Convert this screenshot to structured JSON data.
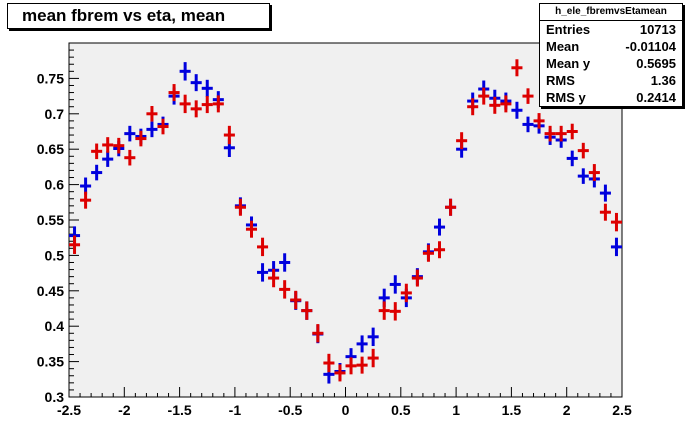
{
  "title": "mean fbrem vs eta, mean",
  "stats": {
    "name": "h_ele_fbremvsEtamean",
    "rows": [
      {
        "label": "Entries",
        "value": "10713"
      },
      {
        "label": "Mean",
        "value": "-0.01104"
      },
      {
        "label": "Mean y",
        "value": "0.5695"
      },
      {
        "label": "RMS",
        "value": "1.36"
      },
      {
        "label": "RMS y",
        "value": "0.2414"
      }
    ]
  },
  "chart_data": {
    "type": "scatter",
    "xlim": [
      -2.5,
      2.5
    ],
    "ylim": [
      0.3,
      0.8
    ],
    "x_ticks": [
      "-2.5",
      "-2",
      "-1.5",
      "-1",
      "-0.5",
      "0",
      "0.5",
      "1",
      "1.5",
      "2",
      "2.5"
    ],
    "y_ticks": [
      "0.3",
      "0.35",
      "0.4",
      "0.45",
      "0.5",
      "0.55",
      "0.6",
      "0.65",
      "0.7",
      "0.75"
    ],
    "grid": false,
    "plot_background": "#f0f0f0",
    "series": [
      {
        "color": "#0000dd",
        "x": [
          -2.45,
          -2.35,
          -2.25,
          -2.15,
          -2.05,
          -1.95,
          -1.85,
          -1.75,
          -1.65,
          -1.55,
          -1.45,
          -1.35,
          -1.25,
          -1.15,
          -1.05,
          -0.95,
          -0.85,
          -0.75,
          -0.65,
          -0.55,
          -0.45,
          -0.35,
          -0.25,
          -0.15,
          -0.05,
          0.05,
          0.15,
          0.25,
          0.35,
          0.45,
          0.55,
          0.65,
          0.75,
          0.85,
          0.95,
          1.05,
          1.15,
          1.25,
          1.35,
          1.45,
          1.55,
          1.65,
          1.75,
          1.85,
          1.95,
          2.05,
          2.15,
          2.25,
          2.35,
          2.45
        ],
        "y": [
          0.528,
          0.598,
          0.617,
          0.636,
          0.651,
          0.672,
          0.668,
          0.678,
          0.685,
          0.725,
          0.76,
          0.744,
          0.736,
          0.72,
          0.652,
          0.57,
          0.543,
          0.476,
          0.479,
          0.49,
          0.436,
          0.422,
          0.389,
          0.332,
          0.336,
          0.357,
          0.375,
          0.385,
          0.44,
          0.459,
          0.44,
          0.47,
          0.505,
          0.54,
          0.568,
          0.65,
          0.718,
          0.735,
          0.722,
          0.718,
          0.705,
          0.685,
          0.683,
          0.667,
          0.663,
          0.637,
          0.612,
          0.608,
          0.588,
          0.512
        ],
        "err": [
          0.013,
          0.012,
          0.011,
          0.011,
          0.011,
          0.011,
          0.011,
          0.011,
          0.011,
          0.012,
          0.013,
          0.012,
          0.012,
          0.012,
          0.013,
          0.012,
          0.012,
          0.013,
          0.013,
          0.013,
          0.013,
          0.013,
          0.013,
          0.013,
          0.012,
          0.012,
          0.012,
          0.013,
          0.013,
          0.013,
          0.013,
          0.012,
          0.012,
          0.012,
          0.012,
          0.012,
          0.012,
          0.012,
          0.012,
          0.012,
          0.012,
          0.011,
          0.011,
          0.011,
          0.011,
          0.011,
          0.011,
          0.012,
          0.012,
          0.013
        ]
      },
      {
        "color": "#dd0000",
        "x": [
          -2.45,
          -2.35,
          -2.25,
          -2.15,
          -2.05,
          -1.95,
          -1.85,
          -1.75,
          -1.65,
          -1.55,
          -1.45,
          -1.35,
          -1.25,
          -1.15,
          -1.05,
          -0.95,
          -0.85,
          -0.75,
          -0.65,
          -0.55,
          -0.45,
          -0.35,
          -0.25,
          -0.15,
          -0.05,
          0.05,
          0.15,
          0.25,
          0.35,
          0.45,
          0.55,
          0.65,
          0.75,
          0.85,
          0.95,
          1.05,
          1.15,
          1.25,
          1.35,
          1.45,
          1.55,
          1.65,
          1.75,
          1.85,
          1.95,
          2.05,
          2.15,
          2.25,
          2.35,
          2.45
        ],
        "y": [
          0.515,
          0.578,
          0.647,
          0.656,
          0.655,
          0.638,
          0.665,
          0.7,
          0.682,
          0.73,
          0.714,
          0.707,
          0.713,
          0.714,
          0.67,
          0.568,
          0.537,
          0.512,
          0.468,
          0.452,
          0.437,
          0.422,
          0.39,
          0.348,
          0.334,
          0.344,
          0.345,
          0.355,
          0.422,
          0.421,
          0.447,
          0.468,
          0.503,
          0.508,
          0.568,
          0.662,
          0.71,
          0.725,
          0.712,
          0.714,
          0.765,
          0.725,
          0.69,
          0.672,
          0.672,
          0.675,
          0.648,
          0.617,
          0.561,
          0.547
        ],
        "err": [
          0.013,
          0.012,
          0.011,
          0.011,
          0.011,
          0.011,
          0.011,
          0.011,
          0.011,
          0.012,
          0.013,
          0.012,
          0.012,
          0.012,
          0.013,
          0.012,
          0.012,
          0.013,
          0.013,
          0.013,
          0.013,
          0.013,
          0.013,
          0.013,
          0.012,
          0.012,
          0.012,
          0.013,
          0.013,
          0.013,
          0.013,
          0.012,
          0.012,
          0.012,
          0.012,
          0.012,
          0.012,
          0.012,
          0.012,
          0.012,
          0.012,
          0.011,
          0.011,
          0.011,
          0.011,
          0.011,
          0.011,
          0.012,
          0.012,
          0.013
        ]
      }
    ]
  }
}
